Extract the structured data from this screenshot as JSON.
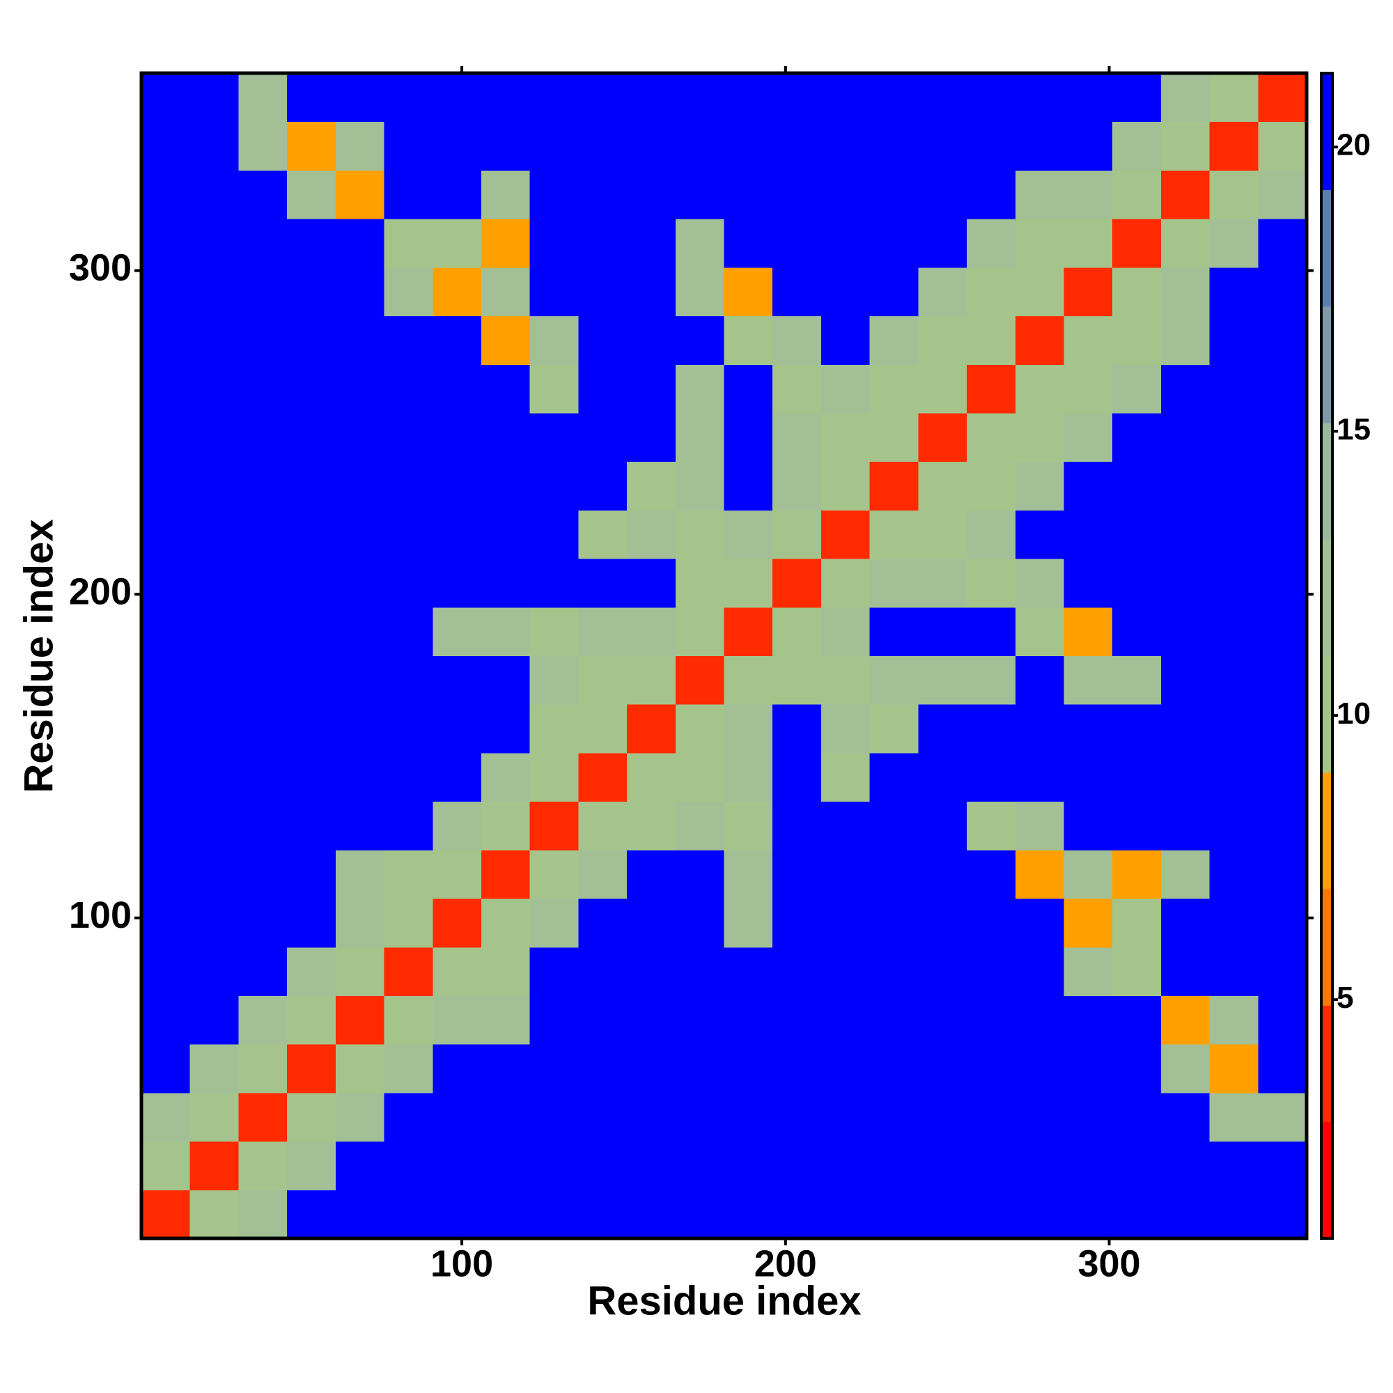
{
  "chart_data": {
    "type": "heatmap",
    "xlabel": "Residue index",
    "ylabel": "Residue index",
    "xlim": [
      1,
      361
    ],
    "ylim": [
      1,
      361
    ],
    "xticks": [
      100,
      200,
      300
    ],
    "yticks": [
      100,
      200,
      300
    ],
    "xbins": [
      1,
      16,
      31,
      46,
      61,
      76,
      91,
      106,
      121,
      136,
      151,
      166,
      181,
      196,
      211,
      226,
      241,
      256,
      271,
      286,
      301,
      316,
      331,
      346,
      361
    ],
    "ybins": [
      1,
      16,
      31,
      46,
      61,
      76,
      91,
      106,
      121,
      136,
      151,
      166,
      181,
      196,
      211,
      226,
      241,
      256,
      271,
      286,
      301,
      316,
      331,
      346,
      361
    ],
    "values": [
      [
        3,
        10,
        12,
        21,
        21,
        21,
        21,
        21,
        21,
        21,
        21,
        21,
        21,
        21,
        21,
        21,
        21,
        21,
        21,
        21,
        21,
        21,
        21,
        21
      ],
      [
        10,
        3,
        10,
        12,
        21,
        21,
        21,
        21,
        21,
        21,
        21,
        21,
        21,
        21,
        21,
        21,
        21,
        21,
        21,
        21,
        21,
        21,
        21,
        21
      ],
      [
        12,
        10,
        3,
        10,
        12,
        21,
        21,
        21,
        21,
        21,
        21,
        21,
        21,
        21,
        21,
        21,
        21,
        21,
        21,
        21,
        21,
        21,
        12,
        13
      ],
      [
        21,
        12,
        10,
        3,
        10,
        12,
        21,
        21,
        21,
        21,
        21,
        21,
        21,
        21,
        21,
        21,
        21,
        21,
        21,
        21,
        21,
        12,
        8,
        21
      ],
      [
        21,
        21,
        12,
        10,
        3,
        10,
        13,
        12,
        21,
        21,
        21,
        21,
        21,
        21,
        21,
        21,
        21,
        21,
        21,
        21,
        21,
        8,
        12,
        21
      ],
      [
        21,
        21,
        21,
        12,
        10,
        3,
        10,
        10,
        21,
        21,
        21,
        21,
        21,
        21,
        21,
        21,
        21,
        21,
        21,
        13,
        10,
        21,
        21,
        21
      ],
      [
        21,
        21,
        21,
        21,
        13,
        10,
        3,
        10,
        13,
        21,
        21,
        21,
        12,
        21,
        21,
        21,
        21,
        21,
        21,
        8,
        10,
        21,
        21,
        21
      ],
      [
        21,
        21,
        21,
        21,
        12,
        10,
        10,
        3,
        10,
        13,
        21,
        21,
        12,
        21,
        21,
        21,
        21,
        21,
        8,
        12,
        8,
        12,
        21,
        21
      ],
      [
        21,
        21,
        21,
        21,
        21,
        21,
        13,
        10,
        3,
        10,
        10,
        12,
        11,
        21,
        21,
        21,
        21,
        10,
        12,
        21,
        21,
        21,
        21,
        21
      ],
      [
        21,
        21,
        21,
        21,
        21,
        21,
        21,
        13,
        10,
        3,
        10,
        10,
        13,
        21,
        11,
        21,
        21,
        21,
        21,
        21,
        21,
        21,
        21,
        21
      ],
      [
        21,
        21,
        21,
        21,
        21,
        21,
        21,
        21,
        10,
        10,
        3,
        10,
        13,
        21,
        12,
        10,
        21,
        21,
        21,
        21,
        21,
        21,
        21,
        21
      ],
      [
        21,
        21,
        21,
        21,
        21,
        21,
        21,
        21,
        12,
        10,
        10,
        3,
        10,
        10,
        11,
        12,
        12,
        12,
        21,
        12,
        13,
        21,
        21,
        21
      ],
      [
        21,
        21,
        21,
        21,
        21,
        21,
        12,
        12,
        11,
        13,
        13,
        10,
        3,
        10,
        13,
        21,
        21,
        21,
        10,
        8,
        21,
        21,
        21,
        21
      ],
      [
        21,
        21,
        21,
        21,
        21,
        21,
        21,
        21,
        21,
        21,
        21,
        10,
        10,
        3,
        10,
        12,
        12,
        10,
        13,
        21,
        21,
        21,
        21,
        21
      ],
      [
        21,
        21,
        21,
        21,
        21,
        21,
        21,
        21,
        21,
        11,
        12,
        11,
        13,
        10,
        3,
        10,
        10,
        12,
        21,
        21,
        21,
        21,
        21,
        21
      ],
      [
        21,
        21,
        21,
        21,
        21,
        21,
        21,
        21,
        21,
        21,
        10,
        12,
        21,
        12,
        10,
        3,
        10,
        10,
        13,
        21,
        21,
        21,
        21,
        21
      ],
      [
        21,
        21,
        21,
        21,
        21,
        21,
        21,
        21,
        21,
        21,
        21,
        12,
        21,
        12,
        10,
        10,
        3,
        10,
        10,
        13,
        21,
        21,
        21,
        21
      ],
      [
        21,
        21,
        21,
        21,
        21,
        21,
        21,
        21,
        10,
        21,
        21,
        12,
        21,
        10,
        12,
        10,
        10,
        3,
        10,
        10,
        12,
        21,
        21,
        21
      ],
      [
        21,
        21,
        21,
        21,
        21,
        21,
        21,
        8,
        12,
        21,
        21,
        21,
        10,
        13,
        21,
        13,
        10,
        10,
        3,
        10,
        10,
        12,
        21,
        21
      ],
      [
        21,
        21,
        21,
        21,
        21,
        13,
        8,
        12,
        21,
        21,
        21,
        12,
        8,
        21,
        21,
        21,
        13,
        10,
        10,
        3,
        10,
        12,
        21,
        21
      ],
      [
        21,
        21,
        21,
        21,
        21,
        10,
        10,
        8,
        21,
        21,
        21,
        13,
        21,
        21,
        21,
        21,
        21,
        12,
        10,
        10,
        3,
        10,
        12,
        21
      ],
      [
        21,
        21,
        21,
        12,
        8,
        21,
        21,
        12,
        21,
        21,
        21,
        21,
        21,
        21,
        21,
        21,
        21,
        21,
        12,
        12,
        10,
        3,
        10,
        13
      ],
      [
        21,
        21,
        12,
        8,
        12,
        21,
        21,
        21,
        21,
        21,
        21,
        21,
        21,
        21,
        21,
        21,
        21,
        21,
        21,
        21,
        12,
        10,
        3,
        10
      ],
      [
        21,
        21,
        13,
        21,
        21,
        21,
        21,
        21,
        21,
        21,
        21,
        21,
        21,
        21,
        21,
        21,
        21,
        21,
        21,
        21,
        21,
        13,
        10,
        3
      ]
    ],
    "colorbar": {
      "lim": [
        0.8,
        21.3
      ],
      "ticks": [
        5,
        10,
        15,
        20
      ],
      "colors": [
        "#ff0000",
        "#ff2a00",
        "#ff7800",
        "#ffa000",
        "#a4c48c",
        "#a2bf96",
        "#9ab89e",
        "#7e9aa8",
        "#5b7fb2",
        "#0000ff"
      ]
    }
  }
}
